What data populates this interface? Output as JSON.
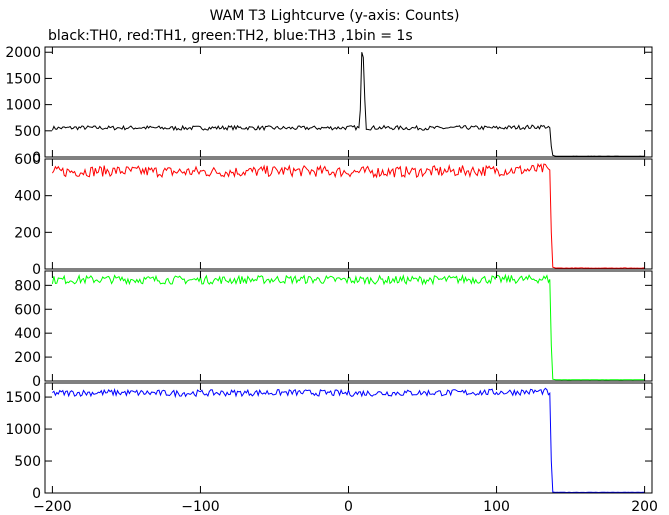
{
  "chart_data": {
    "type": "line",
    "title": "WAM T3 Lightcurve (y-axis: Counts)",
    "subtitle": "black:TH0, red:TH1, green:TH2, blue:TH3 ,1bin = 1s",
    "xlim": [
      -205,
      205
    ],
    "x_ticks": [
      -200,
      -100,
      0,
      100,
      200
    ],
    "x_tick_labels": [
      "−200",
      "−100",
      "0",
      "100",
      "200"
    ],
    "grid": false,
    "panels": [
      {
        "series": "TH0",
        "color": "#000000",
        "ylim": [
          0,
          2100
        ],
        "y_ticks": [
          0,
          500,
          1000,
          1500,
          2000
        ],
        "y_tick_labels": [
          "0",
          "500",
          "1000",
          "1500",
          "2000"
        ],
        "x": [
          -200,
          -180,
          -160,
          -140,
          -120,
          -100,
          -80,
          -60,
          -40,
          -20,
          0,
          7,
          8,
          9,
          10,
          11,
          12,
          14,
          20,
          40,
          60,
          80,
          100,
          120,
          133,
          136,
          137,
          138,
          140,
          160,
          180,
          200
        ],
        "y": [
          550,
          560,
          555,
          560,
          550,
          555,
          560,
          555,
          550,
          555,
          560,
          560,
          900,
          2000,
          1900,
          1100,
          560,
          555,
          560,
          555,
          550,
          560,
          555,
          570,
          580,
          560,
          200,
          30,
          15,
          15,
          15,
          15
        ],
        "noise": [
          40,
          40,
          40,
          40,
          40,
          40,
          40,
          40,
          40,
          40,
          40,
          40,
          0,
          0,
          0,
          0,
          40,
          40,
          40,
          40,
          40,
          40,
          40,
          40,
          40,
          40,
          0,
          0,
          2,
          2,
          2,
          2
        ]
      },
      {
        "series": "TH1",
        "color": "#ff0000",
        "ylim": [
          0,
          600
        ],
        "y_ticks": [
          0,
          200,
          400,
          600
        ],
        "y_tick_labels": [
          "0",
          "200",
          "400",
          "600"
        ],
        "x": [
          -200,
          -160,
          -120,
          -80,
          -40,
          0,
          40,
          80,
          120,
          133,
          136,
          137,
          138,
          140,
          160,
          200
        ],
        "y": [
          530,
          535,
          530,
          530,
          535,
          530,
          530,
          535,
          540,
          545,
          540,
          200,
          10,
          5,
          5,
          5
        ],
        "noise": [
          30,
          30,
          30,
          30,
          30,
          30,
          30,
          30,
          30,
          30,
          30,
          0,
          0,
          1,
          1,
          1
        ]
      },
      {
        "series": "TH2",
        "color": "#00ff00",
        "ylim": [
          0,
          920
        ],
        "y_ticks": [
          0,
          200,
          400,
          600,
          800
        ],
        "y_tick_labels": [
          "0",
          "200",
          "400",
          "600",
          "800"
        ],
        "x": [
          -200,
          -160,
          -120,
          -80,
          -40,
          0,
          40,
          80,
          120,
          133,
          136,
          137,
          138,
          140,
          160,
          200
        ],
        "y": [
          845,
          850,
          845,
          845,
          850,
          845,
          845,
          850,
          850,
          855,
          850,
          300,
          15,
          10,
          10,
          10
        ],
        "noise": [
          35,
          35,
          35,
          35,
          35,
          35,
          35,
          35,
          35,
          35,
          35,
          0,
          0,
          1,
          1,
          1
        ]
      },
      {
        "series": "TH3",
        "color": "#0000ff",
        "ylim": [
          0,
          1720
        ],
        "y_ticks": [
          0,
          500,
          1000,
          1500
        ],
        "y_tick_labels": [
          "0",
          "500",
          "1000",
          "1500"
        ],
        "x": [
          -200,
          -160,
          -120,
          -80,
          -40,
          0,
          40,
          80,
          120,
          133,
          136,
          137,
          138,
          140,
          160,
          200
        ],
        "y": [
          1560,
          1570,
          1560,
          1565,
          1570,
          1560,
          1565,
          1570,
          1580,
          1590,
          1560,
          500,
          15,
          10,
          10,
          10
        ],
        "noise": [
          50,
          50,
          50,
          50,
          50,
          50,
          50,
          50,
          50,
          50,
          50,
          0,
          0,
          2,
          2,
          2
        ]
      }
    ]
  }
}
